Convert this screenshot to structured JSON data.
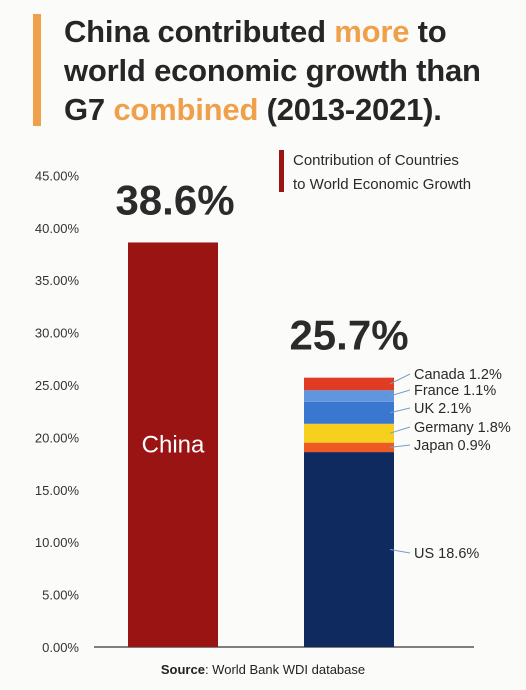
{
  "header": {
    "title_part1": "China contributed ",
    "title_hl1": "more",
    "title_part2": " to world economic growth than G7 ",
    "title_hl2": "combined",
    "title_part3": " (2013-2021).",
    "accent_color": "#f0a04b"
  },
  "footer": {
    "source_label": "Source",
    "source_text": ": World Bank WDI database"
  },
  "chart_data": {
    "type": "bar",
    "legend": {
      "label_line1": "Contribution of Countries",
      "label_line2": "to World Economic Growth",
      "color": "#9b1414",
      "placement": "top-right"
    },
    "ylim": [
      0,
      45
    ],
    "yticks": [
      "0.00%",
      "5.00%",
      "10.00%",
      "15.00%",
      "20.00%",
      "25.00%",
      "30.00%",
      "35.00%",
      "40.00%",
      "45.00%"
    ],
    "ytick_values": [
      0,
      5,
      10,
      15,
      20,
      25,
      30,
      35,
      40,
      45
    ],
    "grid": false,
    "bars": [
      {
        "name": "China",
        "total_label": "38.6%",
        "inner_label": "China",
        "value": 38.6,
        "color": "#9b1414"
      },
      {
        "name": "G7",
        "total_label": "25.7%",
        "value": 25.7,
        "segments": [
          {
            "name": "US",
            "label": "US 18.6%",
            "value": 18.6,
            "color": "#0f2a5e"
          },
          {
            "name": "Japan",
            "label": "Japan 0.9%",
            "value": 0.9,
            "color": "#ee5a24"
          },
          {
            "name": "Germany",
            "label": "Germany 1.8%",
            "value": 1.8,
            "color": "#f7cf1d"
          },
          {
            "name": "UK",
            "label": "UK 2.1%",
            "value": 2.1,
            "color": "#3a78d0"
          },
          {
            "name": "France",
            "label": "France 1.1%",
            "value": 1.1,
            "color": "#5f96dd"
          },
          {
            "name": "Canada",
            "label": "Canada 1.2%",
            "value": 1.2,
            "color": "#e03b23"
          }
        ]
      }
    ]
  }
}
